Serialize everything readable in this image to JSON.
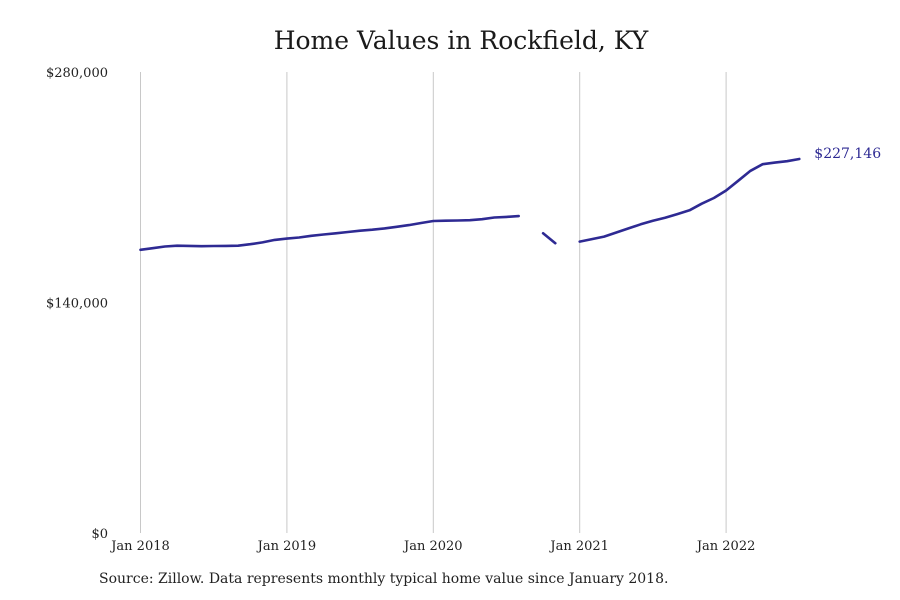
{
  "chart_data": {
    "type": "line",
    "title": "Home Values in Rockfield, KY",
    "source": "Source: Zillow. Data represents monthly typical home value since January 2018.",
    "xlabel": "",
    "ylabel": "",
    "x_start": "2018-01",
    "xlim": [
      "2018-01",
      "2022-12"
    ],
    "ylim": [
      0,
      280000
    ],
    "y_ticks": [
      {
        "value": 0,
        "label": "$0"
      },
      {
        "value": 140000,
        "label": "$140,000"
      },
      {
        "value": 280000,
        "label": "$280,000"
      }
    ],
    "x_ticks": [
      {
        "date": "2018-01",
        "label": "Jan 2018"
      },
      {
        "date": "2019-01",
        "label": "Jan 2019"
      },
      {
        "date": "2020-01",
        "label": "Jan 2020"
      },
      {
        "date": "2021-01",
        "label": "Jan 2021"
      },
      {
        "date": "2022-01",
        "label": "Jan 2022"
      }
    ],
    "grid": {
      "vertical": true,
      "horizontal": false
    },
    "legend": "none",
    "series": [
      {
        "color": "#2e2a93",
        "points": [
          {
            "x": "2018-01",
            "y": 172000
          },
          {
            "x": "2018-02",
            "y": 173000
          },
          {
            "x": "2018-03",
            "y": 174000
          },
          {
            "x": "2018-04",
            "y": 174500
          },
          {
            "x": "2018-05",
            "y": 174400
          },
          {
            "x": "2018-06",
            "y": 174200
          },
          {
            "x": "2018-07",
            "y": 174300
          },
          {
            "x": "2018-08",
            "y": 174400
          },
          {
            "x": "2018-09",
            "y": 174500
          },
          {
            "x": "2018-10",
            "y": 175400
          },
          {
            "x": "2018-11",
            "y": 176500
          },
          {
            "x": "2018-12",
            "y": 178000
          },
          {
            "x": "2019-01",
            "y": 178800
          },
          {
            "x": "2019-02",
            "y": 179500
          },
          {
            "x": "2019-03",
            "y": 180500
          },
          {
            "x": "2019-04",
            "y": 181300
          },
          {
            "x": "2019-05",
            "y": 182000
          },
          {
            "x": "2019-06",
            "y": 182800
          },
          {
            "x": "2019-07",
            "y": 183600
          },
          {
            "x": "2019-08",
            "y": 184200
          },
          {
            "x": "2019-09",
            "y": 185000
          },
          {
            "x": "2019-10",
            "y": 186000
          },
          {
            "x": "2019-11",
            "y": 187000
          },
          {
            "x": "2019-12",
            "y": 188300
          },
          {
            "x": "2020-01",
            "y": 189500
          },
          {
            "x": "2020-02",
            "y": 189700
          },
          {
            "x": "2020-03",
            "y": 189800
          },
          {
            "x": "2020-04",
            "y": 190000
          },
          {
            "x": "2020-05",
            "y": 190600
          },
          {
            "x": "2020-06",
            "y": 191600
          },
          {
            "x": "2020-07",
            "y": 192000
          },
          {
            "x": "2020-08",
            "y": 192500
          },
          {
            "x": "2020-09",
            "y": null
          },
          {
            "x": "2020-10",
            "y": 182000
          },
          {
            "x": "2020-11",
            "y": 176000
          },
          {
            "x": "2020-12",
            "y": null
          },
          {
            "x": "2021-01",
            "y": 177000
          },
          {
            "x": "2021-02",
            "y": 178500
          },
          {
            "x": "2021-03",
            "y": 180000
          },
          {
            "x": "2021-04",
            "y": 182500
          },
          {
            "x": "2021-05",
            "y": 185000
          },
          {
            "x": "2021-06",
            "y": 187500
          },
          {
            "x": "2021-07",
            "y": 189700
          },
          {
            "x": "2021-08",
            "y": 191500
          },
          {
            "x": "2021-09",
            "y": 193700
          },
          {
            "x": "2021-10",
            "y": 196000
          },
          {
            "x": "2021-11",
            "y": 200000
          },
          {
            "x": "2021-12",
            "y": 203500
          },
          {
            "x": "2022-01",
            "y": 208000
          },
          {
            "x": "2022-02",
            "y": 214000
          },
          {
            "x": "2022-03",
            "y": 220000
          },
          {
            "x": "2022-04",
            "y": 224000
          },
          {
            "x": "2022-05",
            "y": 225000
          },
          {
            "x": "2022-06",
            "y": 225800
          },
          {
            "x": "2022-07",
            "y": 227146
          }
        ],
        "end_label": "$227,146"
      }
    ]
  }
}
